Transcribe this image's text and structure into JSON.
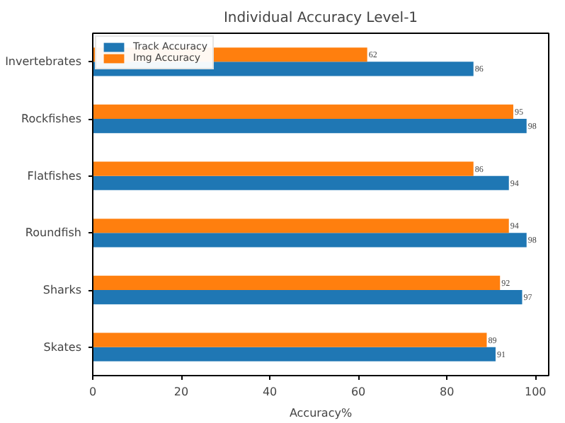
{
  "chart_data": {
    "type": "bar",
    "orientation": "horizontal",
    "title": "Individual Accuracy Level-1",
    "xlabel": "Accuracy%",
    "categories": [
      "Invertebrates",
      "Rockfishes",
      "Flatfishes",
      "Roundfish",
      "Sharks",
      "Skates"
    ],
    "series": [
      {
        "name": "Track Accuracy",
        "color": "#1f77b4",
        "values": [
          86,
          98,
          94,
          98,
          97,
          91
        ]
      },
      {
        "name": "Img Accuracy",
        "color": "#ff7f0e",
        "values": [
          62,
          95,
          86,
          94,
          92,
          89
        ]
      }
    ],
    "xlim": [
      0,
      103
    ],
    "xticks": [
      0,
      20,
      40,
      60,
      80,
      100
    ],
    "data_labels": true,
    "legend": "top left",
    "grid": false
  }
}
